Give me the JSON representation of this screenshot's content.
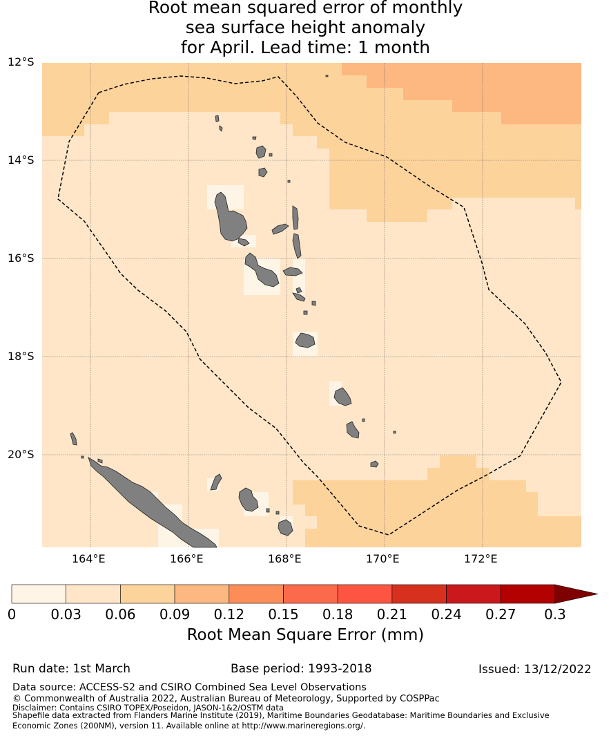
{
  "title": {
    "line1": "Root mean squared error of monthly",
    "line2": "sea surface height anomaly",
    "line3": "for April. Lead time: 1 month"
  },
  "map": {
    "lat_labels": [
      "12°S",
      "14°S",
      "16°S",
      "18°S",
      "20°S"
    ],
    "lon_labels": [
      "164°E",
      "166°E",
      "168°E",
      "170°E",
      "172°E"
    ],
    "colors": {
      "bin1": "#fff5e6",
      "bin2": "#ffe6c8",
      "bin3": "#fdd39c",
      "bin4": "#fcb880",
      "land": "#808080",
      "boundary": "#000000"
    }
  },
  "legend": {
    "ticks": [
      "0",
      "0.03",
      "0.06",
      "0.09",
      "0.12",
      "0.15",
      "0.18",
      "0.21",
      "0.24",
      "0.27",
      "0.3"
    ],
    "colors": [
      "#fff5e6",
      "#ffe6c8",
      "#fdd39c",
      "#fcb880",
      "#fc8d59",
      "#fb6a4a",
      "#fe5542",
      "#d7301f",
      "#cb181d",
      "#b30000"
    ],
    "extend_color": "#7f0000",
    "label": "Root Mean Square Error (mm)"
  },
  "footer": {
    "run_date": "Run date: 1st March",
    "base_period": "Base period: 1993-2018",
    "issued": "Issued: 13/12/2022",
    "data_source": "Data source: ACCESS-S2 and CSIRO Combined Sea Level Observations",
    "copyright": "© Commonwealth of Australia 2022, Australian Bureau of Meteorology, Supported by COSPPac",
    "disclaimer": "Disclaimer: Contains CSIRO TOPEX/Poseidon, JASON-1&2/OSTM data",
    "shapefile1": "Shapefile data extracted from Flanders Marine Institute (2019), Maritime Boundaries Geodatabase: Maritime Boundaries and Exclusive",
    "shapefile2": "Economic Zones (200NM), version 11. Available online at http://www.marineregions.org/."
  }
}
